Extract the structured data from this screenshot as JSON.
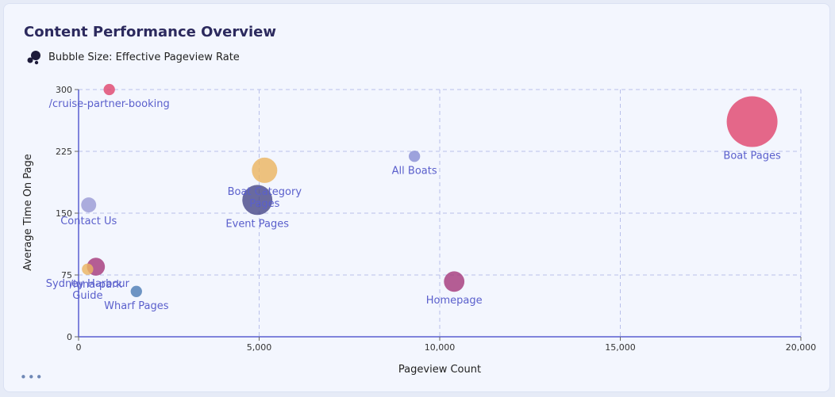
{
  "header": {
    "title": "Content Performance Overview",
    "legend_text": "Bubble Size: Effective Pageview Rate",
    "legend_icon": "bubbles-icon"
  },
  "menu": {
    "icon": "more-options-icon",
    "label": "•••"
  },
  "chart_data": {
    "type": "scatter",
    "title": "Content Performance Overview",
    "xlabel": "Pageview Count",
    "ylabel": "Average Time On Page",
    "xlim": [
      0,
      20000
    ],
    "ylim": [
      0,
      300
    ],
    "xticks": [
      0,
      5000,
      10000,
      15000,
      20000
    ],
    "xtick_labels": [
      "0",
      "5,000",
      "10,000",
      "15,000",
      "20,000"
    ],
    "yticks": [
      0,
      75,
      150,
      225,
      300
    ],
    "ytick_labels": [
      "0",
      "75",
      "150",
      "225",
      "300"
    ],
    "grid": true,
    "legend_position": "top-left",
    "size_encoding": "Effective Pageview Rate",
    "points": [
      {
        "label": "/cruise-partner-booking",
        "x": 850,
        "y": 300,
        "size": 0.2,
        "color": "#e0476f"
      },
      {
        "label": "Boat Pages",
        "x": 18650,
        "y": 261,
        "size": 4.0,
        "color": "#e0476f"
      },
      {
        "label": "All Boats",
        "x": 9300,
        "y": 219,
        "size": 0.2,
        "color": "#8a8fd4"
      },
      {
        "label": "Boat Category Pages",
        "x": 5150,
        "y": 202,
        "size": 1.0,
        "color": "#ecb462"
      },
      {
        "label": "Event Pages",
        "x": 4950,
        "y": 166,
        "size": 1.4,
        "color": "#4b4a8a"
      },
      {
        "label": "Contact Us",
        "x": 280,
        "y": 160,
        "size": 0.35,
        "color": "#9b9bd6"
      },
      {
        "label": "/luna-park",
        "x": 480,
        "y": 85,
        "size": 0.5,
        "color": "#a63a7c"
      },
      {
        "label": "Sydney Harbour Guide",
        "x": 250,
        "y": 82,
        "size": 0.2,
        "color": "#ecb462"
      },
      {
        "label": "Wharf Pages",
        "x": 1600,
        "y": 55,
        "size": 0.2,
        "color": "#4f7eb6"
      },
      {
        "label": "Homepage",
        "x": 10400,
        "y": 67,
        "size": 0.65,
        "color": "#a63a7c"
      }
    ]
  }
}
